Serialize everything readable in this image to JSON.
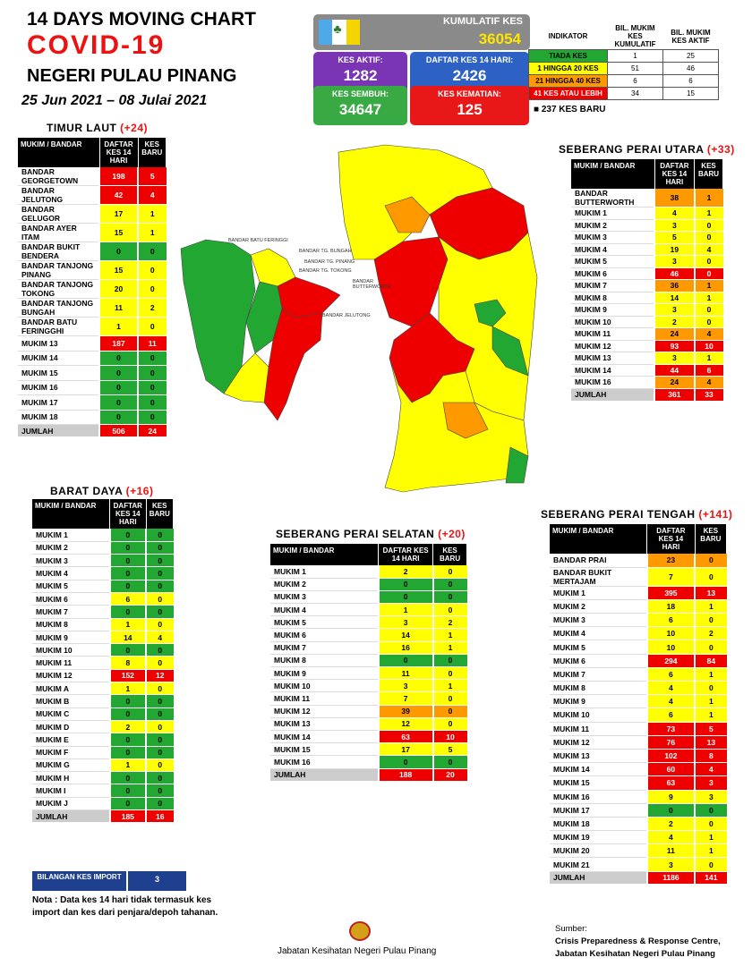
{
  "header": {
    "title": "14  DAYS MOVING CHART",
    "covid": "COVID-19",
    "state": "NEGERI PULAU PINANG",
    "date": "25 Jun 2021 – 08 Julai 2021"
  },
  "stats": {
    "kumulatif_label": "KUMULATIF KES",
    "kumulatif_value": "36054",
    "aktif_label": "KES AKTIF:",
    "aktif_value": "1282",
    "daftar_label": "DAFTAR KES 14 HARI:",
    "daftar_value": "2426",
    "sembuh_label": "KES SEMBUH:",
    "sembuh_value": "34647",
    "kematian_label": "KES KEMATIAN:",
    "kematian_value": "125"
  },
  "legend": {
    "headers": [
      "INDIKATOR",
      "BIL. MUKIM KES KUMULATIF",
      "BIL. MUKIM KES AKTIF"
    ],
    "rows": [
      {
        "label": "TIADA KES",
        "cum": "1",
        "active": "25",
        "color": "#22a832"
      },
      {
        "label": "1 HINGGA 20 KES",
        "cum": "51",
        "active": "46",
        "color": "#ffff00"
      },
      {
        "label": "21 HINGGA 40 KES",
        "cum": "6",
        "active": "6",
        "color": "#ff9900"
      },
      {
        "label": "41 KES ATAU LEBIH",
        "cum": "34",
        "active": "15",
        "color": "#ee0000"
      }
    ],
    "new_cases": "■  237 KES BARU"
  },
  "col_headers": {
    "mukim": "MUKIM / BANDAR",
    "daftar": "DAFTAR KES 14 HARI",
    "baru": "KES BARU"
  },
  "timur_laut": {
    "title": "TIMUR LAUT ",
    "plus": "(+24)",
    "rows": [
      {
        "n": "BANDAR GEORGETOWN",
        "d": "198",
        "b": "5",
        "c": "r"
      },
      {
        "n": "BANDAR JELUTONG",
        "d": "42",
        "b": "4",
        "c": "r"
      },
      {
        "n": "BANDAR GELUGOR",
        "d": "17",
        "b": "1",
        "c": "y"
      },
      {
        "n": "BANDAR AYER ITAM",
        "d": "15",
        "b": "1",
        "c": "y"
      },
      {
        "n": "BANDAR BUKIT BENDERA",
        "d": "0",
        "b": "0",
        "c": "g"
      },
      {
        "n": "BANDAR TANJONG PINANG",
        "d": "15",
        "b": "0",
        "c": "y"
      },
      {
        "n": "BANDAR TANJONG TOKONG",
        "d": "20",
        "b": "0",
        "c": "y"
      },
      {
        "n": "BANDAR TANJONG BUNGAH",
        "d": "11",
        "b": "2",
        "c": "y"
      },
      {
        "n": "BANDAR BATU FERINGGHI",
        "d": "1",
        "b": "0",
        "c": "y"
      },
      {
        "n": "MUKIM 13",
        "d": "187",
        "b": "11",
        "c": "r"
      },
      {
        "n": "MUKIM 14",
        "d": "0",
        "b": "0",
        "c": "g"
      },
      {
        "n": "MUKIM 15",
        "d": "0",
        "b": "0",
        "c": "g"
      },
      {
        "n": "MUKIM 16",
        "d": "0",
        "b": "0",
        "c": "g"
      },
      {
        "n": "MUKIM 17",
        "d": "0",
        "b": "0",
        "c": "g"
      },
      {
        "n": "MUKIM 18",
        "d": "0",
        "b": "0",
        "c": "g"
      }
    ],
    "total": {
      "n": "JUMLAH",
      "d": "506",
      "b": "24"
    }
  },
  "barat_daya": {
    "title": "BARAT DAYA ",
    "plus": "(+16)",
    "rows": [
      {
        "n": "MUKIM 1",
        "d": "0",
        "b": "0",
        "c": "g"
      },
      {
        "n": "MUKIM 2",
        "d": "0",
        "b": "0",
        "c": "g"
      },
      {
        "n": "MUKIM 3",
        "d": "0",
        "b": "0",
        "c": "g"
      },
      {
        "n": "MUKIM 4",
        "d": "0",
        "b": "0",
        "c": "g"
      },
      {
        "n": "MUKIM 5",
        "d": "0",
        "b": "0",
        "c": "g"
      },
      {
        "n": "MUKIM 6",
        "d": "6",
        "b": "0",
        "c": "y"
      },
      {
        "n": "MUKIM 7",
        "d": "0",
        "b": "0",
        "c": "g"
      },
      {
        "n": "MUKIM 8",
        "d": "1",
        "b": "0",
        "c": "y"
      },
      {
        "n": "MUKIM 9",
        "d": "14",
        "b": "4",
        "c": "y"
      },
      {
        "n": "MUKIM 10",
        "d": "0",
        "b": "0",
        "c": "g"
      },
      {
        "n": "MUKIM 11",
        "d": "8",
        "b": "0",
        "c": "y"
      },
      {
        "n": "MUKIM 12",
        "d": "152",
        "b": "12",
        "c": "r"
      },
      {
        "n": "MUKIM A",
        "d": "1",
        "b": "0",
        "c": "y"
      },
      {
        "n": "MUKIM B",
        "d": "0",
        "b": "0",
        "c": "g"
      },
      {
        "n": "MUKIM C",
        "d": "0",
        "b": "0",
        "c": "g"
      },
      {
        "n": "MUKIM D",
        "d": "2",
        "b": "0",
        "c": "y"
      },
      {
        "n": "MUKIM E",
        "d": "0",
        "b": "0",
        "c": "g"
      },
      {
        "n": "MUKIM F",
        "d": "0",
        "b": "0",
        "c": "g"
      },
      {
        "n": "MUKIM G",
        "d": "1",
        "b": "0",
        "c": "y"
      },
      {
        "n": "MUKIM H",
        "d": "0",
        "b": "0",
        "c": "g"
      },
      {
        "n": "MUKIM I",
        "d": "0",
        "b": "0",
        "c": "g"
      },
      {
        "n": "MUKIM J",
        "d": "0",
        "b": "0",
        "c": "g"
      }
    ],
    "total": {
      "n": "JUMLAH",
      "d": "185",
      "b": "16"
    }
  },
  "spu": {
    "title": "SEBERANG PERAI UTARA ",
    "plus": "(+33)",
    "rows": [
      {
        "n": "BANDAR BUTTERWORTH",
        "d": "38",
        "b": "1",
        "c": "o"
      },
      {
        "n": "MUKIM 1",
        "d": "4",
        "b": "1",
        "c": "y"
      },
      {
        "n": "MUKIM 2",
        "d": "3",
        "b": "0",
        "c": "y"
      },
      {
        "n": "MUKIM 3",
        "d": "5",
        "b": "0",
        "c": "y"
      },
      {
        "n": "MUKIM 4",
        "d": "19",
        "b": "4",
        "c": "y"
      },
      {
        "n": "MUKIM 5",
        "d": "3",
        "b": "0",
        "c": "y"
      },
      {
        "n": "MUKIM 6",
        "d": "46",
        "b": "0",
        "c": "r"
      },
      {
        "n": "MUKIM 7",
        "d": "36",
        "b": "1",
        "c": "o"
      },
      {
        "n": "MUKIM 8",
        "d": "14",
        "b": "1",
        "c": "y"
      },
      {
        "n": "MUKIM 9",
        "d": "3",
        "b": "0",
        "c": "y"
      },
      {
        "n": "MUKIM 10",
        "d": "2",
        "b": "0",
        "c": "y"
      },
      {
        "n": "MUKIM 11",
        "d": "24",
        "b": "4",
        "c": "o"
      },
      {
        "n": "MUKIM 12",
        "d": "93",
        "b": "10",
        "c": "r"
      },
      {
        "n": "MUKIM 13",
        "d": "3",
        "b": "1",
        "c": "y"
      },
      {
        "n": "MUKIM 14",
        "d": "44",
        "b": "6",
        "c": "r"
      },
      {
        "n": "MUKIM 16",
        "d": "24",
        "b": "4",
        "c": "o"
      }
    ],
    "total": {
      "n": "JUMLAH",
      "d": "361",
      "b": "33"
    }
  },
  "sps": {
    "title": "SEBERANG PERAI SELATAN ",
    "plus": "(+20)",
    "rows": [
      {
        "n": "MUKIM 1",
        "d": "2",
        "b": "0",
        "c": "y"
      },
      {
        "n": "MUKIM 2",
        "d": "0",
        "b": "0",
        "c": "g"
      },
      {
        "n": "MUKIM 3",
        "d": "0",
        "b": "0",
        "c": "g"
      },
      {
        "n": "MUKIM 4",
        "d": "1",
        "b": "0",
        "c": "y"
      },
      {
        "n": "MUKIM 5",
        "d": "3",
        "b": "2",
        "c": "y"
      },
      {
        "n": "MUKIM 6",
        "d": "14",
        "b": "1",
        "c": "y"
      },
      {
        "n": "MUKIM 7",
        "d": "16",
        "b": "1",
        "c": "y"
      },
      {
        "n": "MUKIM 8",
        "d": "0",
        "b": "0",
        "c": "g"
      },
      {
        "n": "MUKIM 9",
        "d": "11",
        "b": "0",
        "c": "y"
      },
      {
        "n": "MUKIM 10",
        "d": "3",
        "b": "1",
        "c": "y"
      },
      {
        "n": "MUKIM 11",
        "d": "7",
        "b": "0",
        "c": "y"
      },
      {
        "n": "MUKIM 12",
        "d": "39",
        "b": "0",
        "c": "o"
      },
      {
        "n": "MUKIM 13",
        "d": "12",
        "b": "0",
        "c": "y"
      },
      {
        "n": "MUKIM 14",
        "d": "63",
        "b": "10",
        "c": "r"
      },
      {
        "n": "MUKIM 15",
        "d": "17",
        "b": "5",
        "c": "y"
      },
      {
        "n": "MUKIM 16",
        "d": "0",
        "b": "0",
        "c": "g"
      }
    ],
    "total": {
      "n": "JUMLAH",
      "d": "188",
      "b": "20"
    }
  },
  "spt": {
    "title": "SEBERANG PERAI TENGAH ",
    "plus": "(+141)",
    "rows": [
      {
        "n": "BANDAR PRAI",
        "d": "23",
        "b": "0",
        "c": "o"
      },
      {
        "n": "BANDAR BUKIT MERTAJAM",
        "d": "7",
        "b": "0",
        "c": "y"
      },
      {
        "n": "MUKIM 1",
        "d": "395",
        "b": "13",
        "c": "r"
      },
      {
        "n": "MUKIM 2",
        "d": "18",
        "b": "1",
        "c": "y"
      },
      {
        "n": "MUKIM 3",
        "d": "6",
        "b": "0",
        "c": "y"
      },
      {
        "n": "MUKIM 4",
        "d": "10",
        "b": "2",
        "c": "y"
      },
      {
        "n": "MUKIM 5",
        "d": "10",
        "b": "0",
        "c": "y"
      },
      {
        "n": "MUKIM 6",
        "d": "294",
        "b": "84",
        "c": "r"
      },
      {
        "n": "MUKIM 7",
        "d": "6",
        "b": "1",
        "c": "y"
      },
      {
        "n": "MUKIM 8",
        "d": "4",
        "b": "0",
        "c": "y"
      },
      {
        "n": "MUKIM 9",
        "d": "4",
        "b": "1",
        "c": "y"
      },
      {
        "n": "MUKIM 10",
        "d": "6",
        "b": "1",
        "c": "y"
      },
      {
        "n": "MUKIM 11",
        "d": "73",
        "b": "5",
        "c": "r"
      },
      {
        "n": "MUKIM 12",
        "d": "76",
        "b": "13",
        "c": "r"
      },
      {
        "n": "MUKIM 13",
        "d": "102",
        "b": "8",
        "c": "r"
      },
      {
        "n": "MUKIM 14",
        "d": "60",
        "b": "4",
        "c": "r"
      },
      {
        "n": "MUKIM 15",
        "d": "63",
        "b": "3",
        "c": "r"
      },
      {
        "n": "MUKIM 16",
        "d": "9",
        "b": "3",
        "c": "y"
      },
      {
        "n": "MUKIM 17",
        "d": "0",
        "b": "0",
        "c": "g"
      },
      {
        "n": "MUKIM 18",
        "d": "2",
        "b": "0",
        "c": "y"
      },
      {
        "n": "MUKIM 19",
        "d": "4",
        "b": "1",
        "c": "y"
      },
      {
        "n": "MUKIM 20",
        "d": "11",
        "b": "1",
        "c": "y"
      },
      {
        "n": "MUKIM 21",
        "d": "3",
        "b": "0",
        "c": "y"
      }
    ],
    "total": {
      "n": "JUMLAH",
      "d": "1186",
      "b": "141"
    }
  },
  "map_labels": {
    "batu_feringgi": "BANDAR BATU FERINGGI",
    "tg_bungah": "BANDAR TG. BUNGAH",
    "tg_pinang": "BANDAR TG. PINANG",
    "tg_tokong": "BANDAR TG. TOKONG",
    "butterworth": "BANDAR BUTTERWORTH",
    "jelutong": "BANDAR JELUTONG"
  },
  "import": {
    "label": "BILANGAN KES IMPORT",
    "value": "3"
  },
  "note": "Nota : Data kes 14 hari tidak termasuk kes import dan kes dari penjara/depoh tahanan.",
  "dept": "Jabatan Kesihatan Negeri Pulau Pinang",
  "source": {
    "label": "Sumber:",
    "line1": "Crisis Preparedness & Response Centre,",
    "line2": "Jabatan Kesihatan Negeri Pulau Pinang"
  }
}
